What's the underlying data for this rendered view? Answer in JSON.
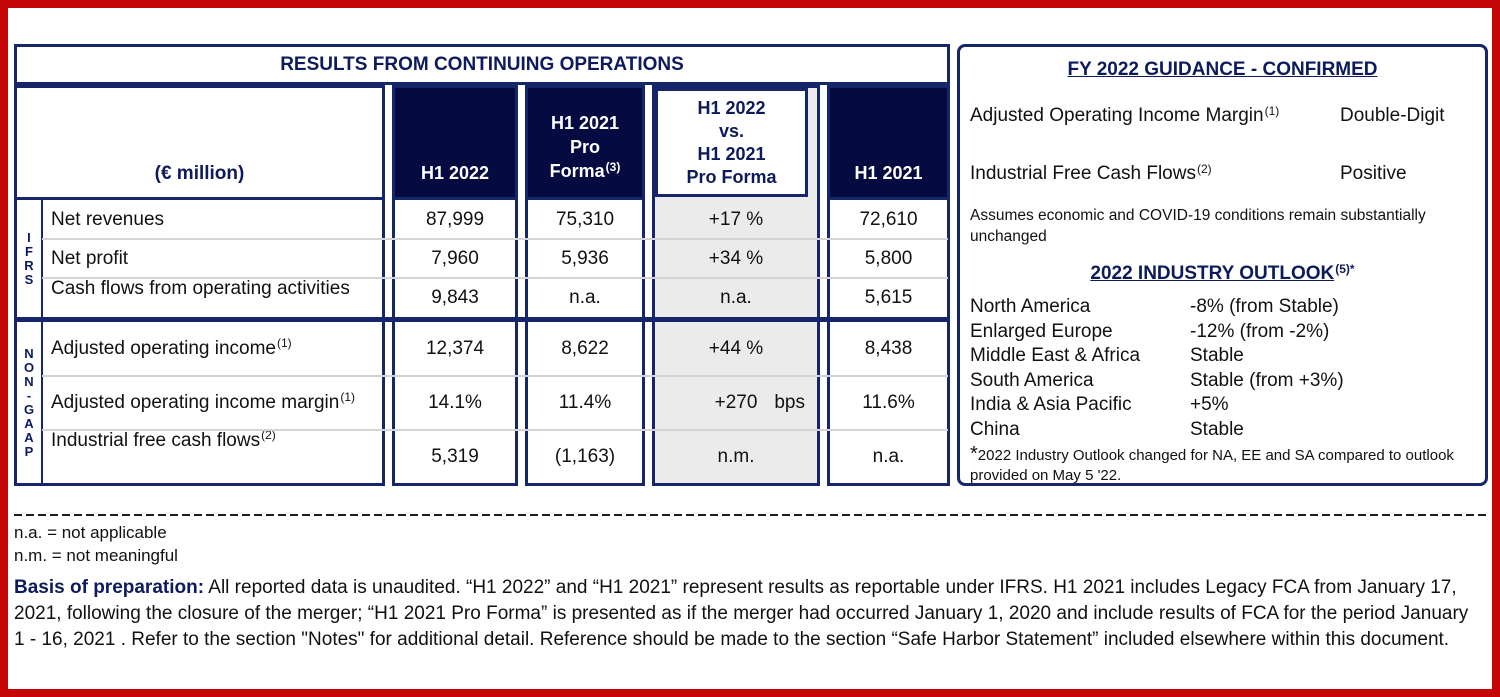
{
  "colors": {
    "outer_border_red": "#c40606",
    "table_line_navy": "#16266b",
    "header_fill_navy": "#050a40",
    "title_text_navy": "#0d1b5c",
    "vs_column_gray": "#ebebeb",
    "row_separator_gray": "#d4d4d4",
    "body_text": "#111111"
  },
  "table": {
    "title": "RESULTS FROM CONTINUING OPERATIONS",
    "unit_header": "(€ million)",
    "headers": {
      "h1_2022": "H1 2022",
      "pf_l1": "H1 2021",
      "pf_l2": "Pro",
      "pf_l3": "Forma",
      "pf_sup": "(3)",
      "vs_l1": "H1 2022",
      "vs_l2": "vs.",
      "vs_l3": "H1 2021",
      "vs_l4": "Pro Forma",
      "h1_2021": "H1 2021"
    },
    "groups": [
      {
        "name": "IFRS",
        "rows": [
          {
            "label": "Net revenues",
            "sup": "",
            "h1_2022": "87,999",
            "pf": "75,310",
            "vs": "+17 %",
            "vs_unit": "",
            "h1_2021": "72,610"
          },
          {
            "label": "Net profit",
            "sup": "",
            "h1_2022": "7,960",
            "pf": "5,936",
            "vs": "+34 %",
            "vs_unit": "",
            "h1_2021": "5,800"
          },
          {
            "label": "Cash flows from operating activities",
            "sup": "",
            "h1_2022": "9,843",
            "pf": "n.a.",
            "vs": "n.a.",
            "vs_unit": "",
            "h1_2021": "5,615"
          }
        ]
      },
      {
        "name": "NON-GAAP",
        "rows": [
          {
            "label": "Adjusted operating income",
            "sup": "(1)",
            "h1_2022": "12,374",
            "pf": "8,622",
            "vs": "+44 %",
            "vs_unit": "",
            "h1_2021": "8,438"
          },
          {
            "label": "Adjusted operating income margin",
            "sup": "(1)",
            "h1_2022": "14.1%",
            "pf": "11.4%",
            "vs": "+270",
            "vs_unit": "bps",
            "h1_2021": "11.6%"
          },
          {
            "label": "Industrial free cash flows",
            "sup": "(2)",
            "h1_2022": "5,319",
            "pf": "(1,163)",
            "vs": "n.m.",
            "vs_unit": "",
            "h1_2021": "n.a."
          }
        ]
      }
    ]
  },
  "guidance": {
    "title": "FY 2022 GUIDANCE - CONFIRMED",
    "rows": [
      {
        "label": "Adjusted Operating Income Margin",
        "sup": "(1)",
        "value": "Double-Digit"
      },
      {
        "label": "Industrial Free Cash Flows",
        "sup": "(2)",
        "value": "Positive"
      }
    ],
    "note": "Assumes economic and COVID-19 conditions remain substantially unchanged"
  },
  "outlook": {
    "title": "2022 INDUSTRY OUTLOOK",
    "title_sup": "(5)*",
    "rows": [
      {
        "region": "North America",
        "value": "-8% (from Stable)"
      },
      {
        "region": "Enlarged Europe",
        "value": "-12% (from -2%)"
      },
      {
        "region": "Middle East & Africa",
        "value": "Stable"
      },
      {
        "region": "South America",
        "value": "Stable (from +3%)"
      },
      {
        "region": "India & Asia Pacific",
        "value": "+5%"
      },
      {
        "region": "China",
        "value": "Stable"
      }
    ],
    "footnote_star": "*",
    "footnote": "2022 Industry Outlook changed for NA, EE and SA compared to outlook provided on May 5 '22."
  },
  "footer": {
    "abbrev_1": "n.a. = not applicable",
    "abbrev_2": "n.m. = not meaningful",
    "basis_label": "Basis of preparation:",
    "basis_text": " All reported data is unaudited. “H1 2022” and “H1 2021” represent results as reportable under IFRS. H1 2021 includes Legacy FCA from January 17, 2021, following the closure of the merger; “H1 2021 Pro Forma” is presented as if the merger had occurred January 1, 2020 and include results of FCA for the period January 1 - 16, 2021 . Refer to the section \"Notes\" for additional detail. Reference should be made to the section “Safe Harbor Statement” included elsewhere within this document."
  }
}
